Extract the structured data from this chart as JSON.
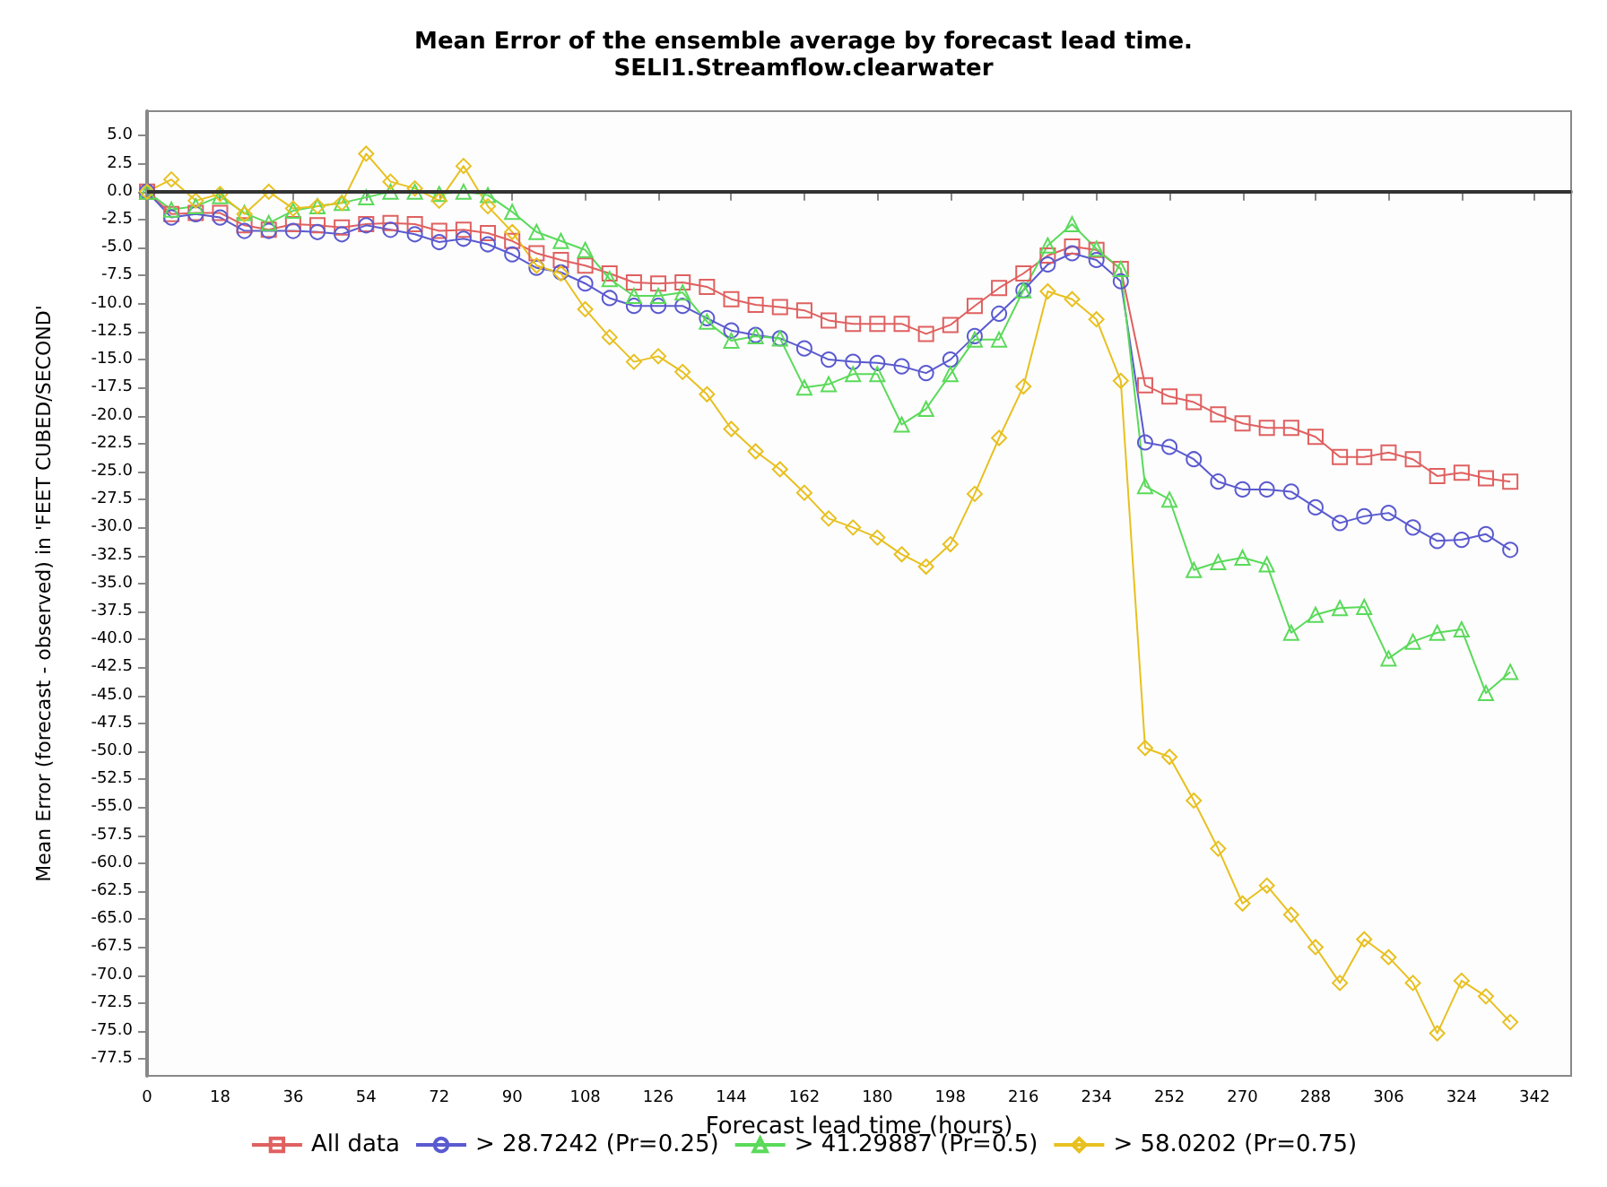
{
  "chart_data": {
    "type": "line",
    "title": "Mean Error of the ensemble average by forecast lead time.",
    "subtitle": "SELI1.Streamflow.clearwater",
    "xlabel": "Forecast lead time (hours)",
    "ylabel": "Mean Error (forecast - observed) in 'FEET CUBED/SECOND'",
    "x": [
      0,
      6,
      12,
      18,
      24,
      30,
      36,
      42,
      48,
      54,
      60,
      66,
      72,
      78,
      84,
      90,
      96,
      102,
      108,
      114,
      120,
      126,
      132,
      138,
      144,
      150,
      156,
      162,
      168,
      174,
      180,
      186,
      192,
      198,
      204,
      210,
      216,
      222,
      228,
      234,
      240,
      246,
      252,
      258,
      264,
      270,
      276,
      282,
      288,
      294,
      300,
      306,
      312,
      318,
      324,
      330,
      336
    ],
    "series": [
      {
        "name": "All data",
        "color": "#e06060",
        "marker": "square",
        "values": [
          0,
          -2.0,
          -1.9,
          -1.9,
          -3.0,
          -3.4,
          -2.9,
          -3.0,
          -3.2,
          -2.9,
          -2.8,
          -2.9,
          -3.5,
          -3.4,
          -3.7,
          -4.4,
          -5.5,
          -6.1,
          -6.6,
          -7.3,
          -8.1,
          -8.2,
          -8.1,
          -8.5,
          -9.6,
          -10.1,
          -10.3,
          -10.6,
          -11.5,
          -11.8,
          -11.8,
          -11.8,
          -12.7,
          -11.9,
          -10.2,
          -8.6,
          -7.3,
          -5.7,
          -4.9,
          -5.2,
          -6.9,
          -17.3,
          -18.3,
          -18.8,
          -19.9,
          -20.7,
          -21.1,
          -21.1,
          -21.9,
          -23.7,
          -23.7,
          -23.3,
          -23.9,
          -25.4,
          -25.1,
          -25.6,
          -25.9
        ]
      },
      {
        "name": "> 28.7242 (Pr=0.25)",
        "color": "#5a5ad0",
        "marker": "circle",
        "values": [
          0,
          -2.3,
          -2.0,
          -2.3,
          -3.5,
          -3.5,
          -3.5,
          -3.6,
          -3.8,
          -3.0,
          -3.4,
          -3.8,
          -4.5,
          -4.2,
          -4.7,
          -5.6,
          -6.8,
          -7.2,
          -8.2,
          -9.5,
          -10.2,
          -10.2,
          -10.2,
          -11.3,
          -12.4,
          -12.8,
          -13.1,
          -14.0,
          -15.0,
          -15.2,
          -15.3,
          -15.6,
          -16.2,
          -15.0,
          -12.9,
          -10.9,
          -8.8,
          -6.5,
          -5.5,
          -6.1,
          -8.0,
          -22.4,
          -22.8,
          -23.9,
          -25.9,
          -26.6,
          -26.6,
          -26.8,
          -28.2,
          -29.6,
          -29.0,
          -28.7,
          -30.0,
          -31.2,
          -31.1,
          -30.6,
          -32.0
        ]
      },
      {
        "name": "> 41.29887 (Pr=0.5)",
        "color": "#5ada5a",
        "marker": "triangle",
        "values": [
          0,
          -1.6,
          -1.3,
          -0.4,
          -1.9,
          -2.8,
          -1.7,
          -1.3,
          -1.0,
          -0.5,
          0.0,
          0.0,
          -0.2,
          0.0,
          -0.3,
          -1.8,
          -3.6,
          -4.4,
          -5.2,
          -7.8,
          -9.3,
          -9.3,
          -9.0,
          -11.6,
          -13.3,
          -12.9,
          -13.1,
          -17.5,
          -17.2,
          -16.3,
          -16.3,
          -20.8,
          -19.4,
          -16.3,
          -13.2,
          -13.2,
          -8.8,
          -4.8,
          -2.9,
          -5.1,
          -6.9,
          -26.3,
          -27.5,
          -33.8,
          -33.1,
          -32.7,
          -33.3,
          -39.4,
          -37.8,
          -37.2,
          -37.1,
          -41.7,
          -40.2,
          -39.4,
          -39.1,
          -44.8,
          -42.9
        ]
      },
      {
        "name": "> 58.0202 (Pr=0.75)",
        "color": "#e8c020",
        "marker": "diamond",
        "values": [
          0,
          1.1,
          -0.8,
          -0.2,
          -2.0,
          0.0,
          -1.5,
          -1.3,
          -1.0,
          3.4,
          0.9,
          0.3,
          -0.8,
          2.3,
          -1.3,
          -3.6,
          -6.6,
          -7.3,
          -10.5,
          -13.0,
          -15.2,
          -14.7,
          -16.1,
          -18.1,
          -21.2,
          -23.2,
          -24.8,
          -26.9,
          -29.2,
          -30.0,
          -30.9,
          -32.4,
          -33.5,
          -31.5,
          -27.0,
          -22.0,
          -17.4,
          -8.9,
          -9.6,
          -11.4,
          -16.9,
          -49.7,
          -50.5,
          -54.4,
          -58.7,
          -63.6,
          -62.0,
          -64.6,
          -67.5,
          -70.7,
          -66.8,
          -68.4,
          -70.7,
          -75.2,
          -70.5,
          -71.9,
          -74.2
        ]
      }
    ],
    "xlim": [
      0,
      351
    ],
    "xticks": [
      0,
      18,
      36,
      54,
      72,
      90,
      108,
      126,
      144,
      162,
      180,
      198,
      216,
      234,
      252,
      270,
      288,
      306,
      324,
      342
    ],
    "ylim": [
      -79,
      7.2
    ],
    "yticks": [
      -77.5,
      {
        "value": -75,
        "label": "-75.0"
      },
      -72.5,
      {
        "value": -70,
        "label": "-70.0"
      },
      -67.5,
      {
        "value": -65,
        "label": "-65.0"
      },
      -62.5,
      {
        "value": -60,
        "label": "-60.0"
      },
      -57.5,
      {
        "value": -55,
        "label": "-55.0"
      },
      -52.5,
      {
        "value": -50,
        "label": "-50.0"
      },
      -47.5,
      {
        "value": -45,
        "label": "-45.0"
      },
      -42.5,
      {
        "value": -40,
        "label": "-40.0"
      },
      -37.5,
      {
        "value": -35,
        "label": "-35.0"
      },
      -32.5,
      {
        "value": -30,
        "label": "-30.0"
      },
      -27.5,
      {
        "value": -25,
        "label": "-25.0"
      },
      -22.5,
      {
        "value": -20,
        "label": "-20.0"
      },
      -17.5,
      {
        "value": -15,
        "label": "-15.0"
      },
      -12.5,
      {
        "value": -10,
        "label": "-10.0"
      },
      -7.5,
      {
        "value": -5,
        "label": "-5.0"
      },
      -2.5,
      {
        "value": 0,
        "label": "0.0"
      },
      2.5,
      {
        "value": 5,
        "label": "5.0"
      }
    ],
    "ref_lines": [
      {
        "axis": "y",
        "value": 0,
        "color": "#333333"
      }
    ],
    "grid": false,
    "legend": "bottom",
    "line_style": "solid"
  }
}
